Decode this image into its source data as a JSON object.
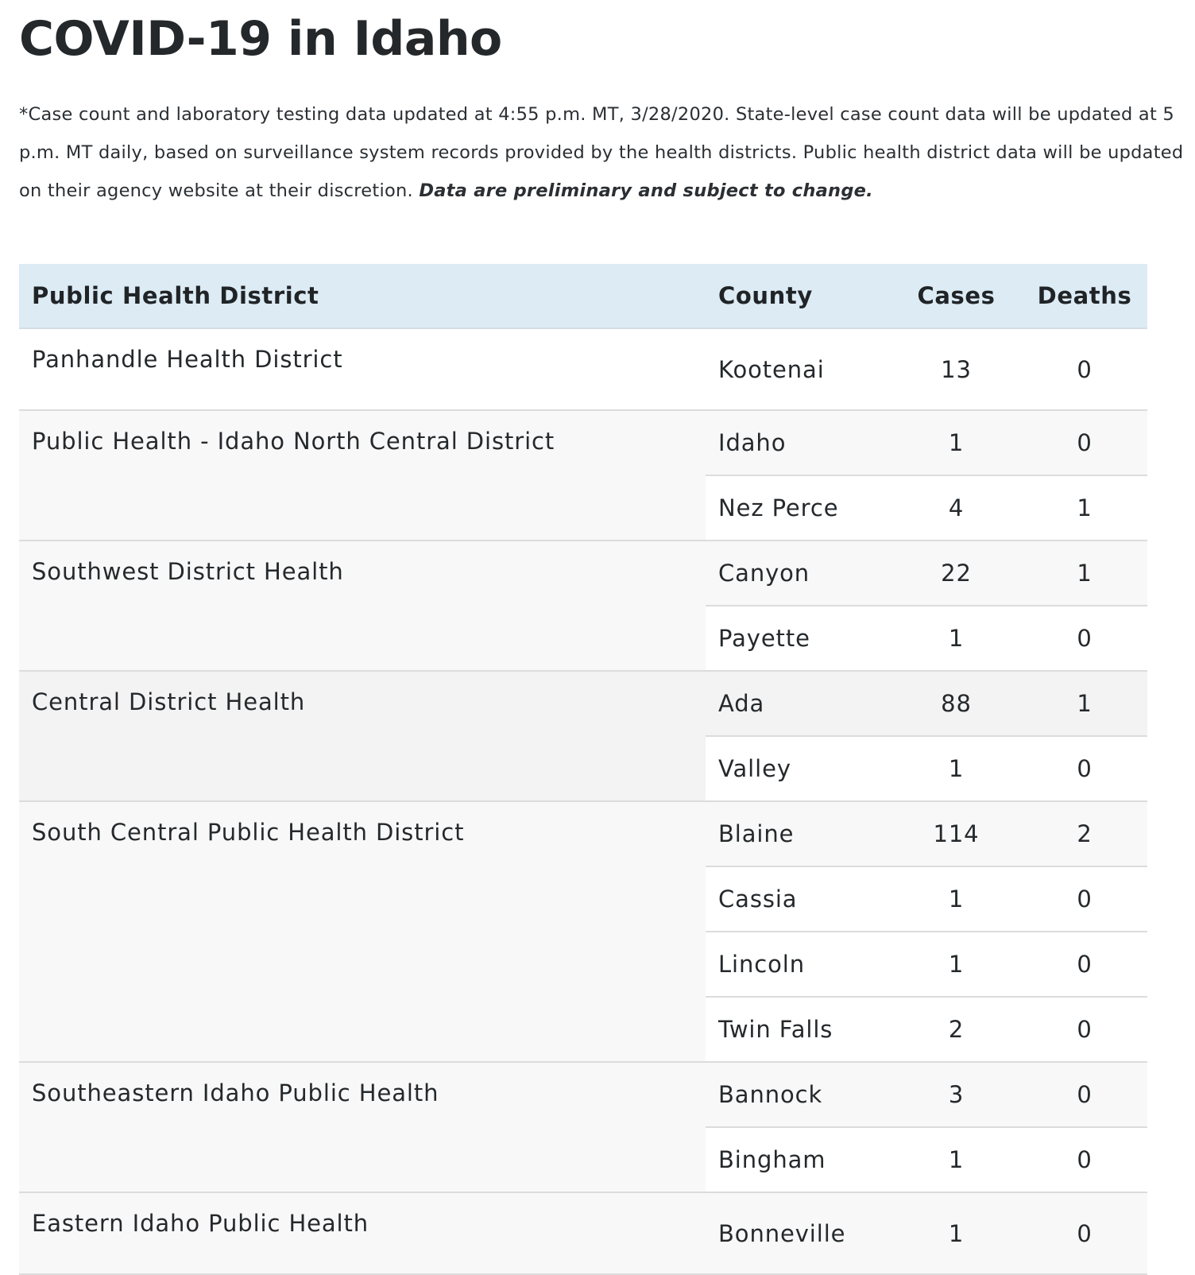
{
  "page": {
    "title": "COVID-19 in Idaho",
    "note_text": "*Case count and laboratory testing data updated at 4:55 p.m. MT, 3/28/2020. State-level case count data will be updated at 5 p.m. MT daily, based on surveillance system records provided by the health districts. Public health district data will be updated on their agency website at their discretion. ",
    "note_emphasis": "Data are preliminary and subject to change."
  },
  "table": {
    "headers": {
      "district": "Public Health District",
      "county": "County",
      "cases": "Cases",
      "deaths": "Deaths"
    },
    "districts": [
      {
        "name": "Panhandle Health District",
        "counties": [
          {
            "county": "Kootenai",
            "cases": "13",
            "deaths": "0"
          }
        ]
      },
      {
        "name": "Public Health - Idaho North Central District",
        "counties": [
          {
            "county": "Idaho",
            "cases": "1",
            "deaths": "0"
          },
          {
            "county": "Nez Perce",
            "cases": "4",
            "deaths": "1"
          }
        ]
      },
      {
        "name": "Southwest District Health",
        "counties": [
          {
            "county": "Canyon",
            "cases": "22",
            "deaths": "1"
          },
          {
            "county": "Payette",
            "cases": "1",
            "deaths": "0"
          }
        ]
      },
      {
        "name": "Central District Health",
        "counties": [
          {
            "county": "Ada",
            "cases": "88",
            "deaths": "1"
          },
          {
            "county": "Valley",
            "cases": "1",
            "deaths": "0"
          }
        ]
      },
      {
        "name": "South Central Public Health District",
        "counties": [
          {
            "county": "Blaine",
            "cases": "114",
            "deaths": "2"
          },
          {
            "county": "Cassia",
            "cases": "1",
            "deaths": "0"
          },
          {
            "county": "Lincoln",
            "cases": "1",
            "deaths": "0"
          },
          {
            "county": "Twin Falls",
            "cases": "2",
            "deaths": "0"
          }
        ]
      },
      {
        "name": "Southeastern Idaho Public Health",
        "counties": [
          {
            "county": "Bannock",
            "cases": "3",
            "deaths": "0"
          },
          {
            "county": "Bingham",
            "cases": "1",
            "deaths": "0"
          }
        ]
      },
      {
        "name": "Eastern Idaho Public Health",
        "counties": [
          {
            "county": "Bonneville",
            "cases": "1",
            "deaths": "0"
          }
        ]
      }
    ]
  }
}
